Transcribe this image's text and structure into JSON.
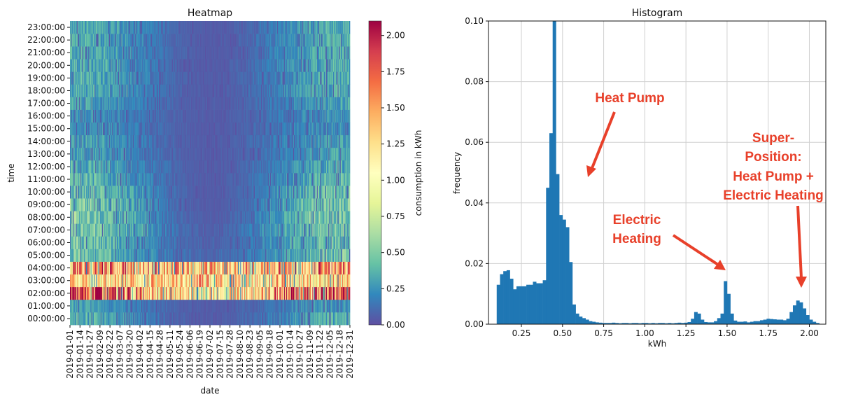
{
  "chart_data": [
    {
      "type": "heatmap",
      "title": "Heatmap",
      "xlabel": "date",
      "ylabel": "time",
      "x_ticks": [
        "2019-01-01",
        "2019-01-14",
        "2019-01-27",
        "2019-02-09",
        "2019-02-22",
        "2019-03-07",
        "2019-03-20",
        "2019-04-02",
        "2019-04-15",
        "2019-04-28",
        "2019-05-11",
        "2019-05-24",
        "2019-06-06",
        "2019-06-19",
        "2019-07-02",
        "2019-07-15",
        "2019-07-28",
        "2019-08-10",
        "2019-08-23",
        "2019-09-05",
        "2019-09-18",
        "2019-10-01",
        "2019-10-14",
        "2019-10-27",
        "2019-11-09",
        "2019-11-22",
        "2019-12-05",
        "2019-12-18",
        "2019-12-31"
      ],
      "y_ticks": [
        "00:00:00",
        "01:00:00",
        "02:00:00",
        "03:00:00",
        "04:00:00",
        "05:00:00",
        "06:00:00",
        "07:00:00",
        "08:00:00",
        "09:00:00",
        "10:00:00",
        "11:00:00",
        "12:00:00",
        "13:00:00",
        "14:00:00",
        "15:00:00",
        "16:00:00",
        "17:00:00",
        "18:00:00",
        "19:00:00",
        "20:00:00",
        "21:00:00",
        "22:00:00",
        "23:00:00"
      ],
      "colorbar": {
        "label": "consumption in kWh",
        "range": [
          0.0,
          2.1
        ],
        "ticks": [
          "0.00",
          "0.25",
          "0.50",
          "0.75",
          "1.00",
          "1.25",
          "1.50",
          "1.75",
          "2.00"
        ],
        "colormap": "Spectral_r"
      },
      "hourly_profile_by_season": {
        "hours": [
          0,
          1,
          2,
          3,
          4,
          5,
          6,
          7,
          8,
          9,
          10,
          11,
          12,
          13,
          14,
          15,
          16,
          17,
          18,
          19,
          20,
          21,
          22,
          23
        ],
        "winter": [
          0.35,
          0.3,
          1.9,
          1.2,
          1.5,
          0.45,
          0.45,
          0.5,
          0.5,
          0.5,
          0.45,
          0.4,
          0.35,
          0.3,
          0.3,
          0.25,
          0.25,
          0.3,
          0.35,
          0.35,
          0.35,
          0.35,
          0.35,
          0.35
        ],
        "summer": [
          0.05,
          0.05,
          1.1,
          1.3,
          1.3,
          0.1,
          0.08,
          0.08,
          0.06,
          0.05,
          0.05,
          0.05,
          0.05,
          0.05,
          0.05,
          0.05,
          0.05,
          0.05,
          0.05,
          0.05,
          0.05,
          0.05,
          0.05,
          0.05
        ]
      }
    },
    {
      "type": "bar",
      "title": "Histogram",
      "xlabel": "kWh",
      "ylabel": "frequency",
      "xlim": [
        0.05,
        2.1
      ],
      "ylim": [
        0,
        0.1
      ],
      "grid": true,
      "x_ticks": [
        "0.25",
        "0.50",
        "0.75",
        "1.00",
        "1.25",
        "1.50",
        "1.75",
        "2.00"
      ],
      "y_ticks": [
        "0.00",
        "0.02",
        "0.04",
        "0.06",
        "0.08",
        "0.10"
      ],
      "bin_width": 0.02,
      "bins": [
        [
          0.1,
          0.013
        ],
        [
          0.12,
          0.0165
        ],
        [
          0.14,
          0.0175
        ],
        [
          0.16,
          0.0178
        ],
        [
          0.18,
          0.015
        ],
        [
          0.2,
          0.0115
        ],
        [
          0.22,
          0.0125
        ],
        [
          0.24,
          0.0125
        ],
        [
          0.26,
          0.0125
        ],
        [
          0.28,
          0.013
        ],
        [
          0.3,
          0.013
        ],
        [
          0.32,
          0.014
        ],
        [
          0.34,
          0.0135
        ],
        [
          0.36,
          0.0135
        ],
        [
          0.38,
          0.0145
        ],
        [
          0.4,
          0.045
        ],
        [
          0.42,
          0.063
        ],
        [
          0.44,
          0.1
        ],
        [
          0.46,
          0.0495
        ],
        [
          0.48,
          0.036
        ],
        [
          0.5,
          0.0345
        ],
        [
          0.52,
          0.032
        ],
        [
          0.54,
          0.0205
        ],
        [
          0.56,
          0.0065
        ],
        [
          0.58,
          0.0035
        ],
        [
          0.6,
          0.0025
        ],
        [
          0.62,
          0.002
        ],
        [
          0.64,
          0.0015
        ],
        [
          0.66,
          0.001
        ],
        [
          0.68,
          0.0008
        ],
        [
          0.7,
          0.0006
        ],
        [
          0.72,
          0.0005
        ],
        [
          0.74,
          0.0004
        ],
        [
          0.76,
          0.0004
        ],
        [
          0.78,
          0.0004
        ],
        [
          0.8,
          0.0005
        ],
        [
          0.82,
          0.0004
        ],
        [
          0.84,
          0.0003
        ],
        [
          0.86,
          0.0004
        ],
        [
          0.88,
          0.0004
        ],
        [
          0.9,
          0.0003
        ],
        [
          0.92,
          0.0004
        ],
        [
          0.94,
          0.0004
        ],
        [
          0.96,
          0.0003
        ],
        [
          0.98,
          0.0004
        ],
        [
          1.0,
          0.0004
        ],
        [
          1.02,
          0.0003
        ],
        [
          1.04,
          0.0004
        ],
        [
          1.06,
          0.0003
        ],
        [
          1.08,
          0.0004
        ],
        [
          1.1,
          0.0004
        ],
        [
          1.12,
          0.0003
        ],
        [
          1.14,
          0.0004
        ],
        [
          1.16,
          0.0003
        ],
        [
          1.18,
          0.0004
        ],
        [
          1.2,
          0.0005
        ],
        [
          1.22,
          0.0004
        ],
        [
          1.24,
          0.0005
        ],
        [
          1.26,
          0.0007
        ],
        [
          1.28,
          0.0018
        ],
        [
          1.3,
          0.004
        ],
        [
          1.32,
          0.0035
        ],
        [
          1.34,
          0.0015
        ],
        [
          1.36,
          0.0007
        ],
        [
          1.38,
          0.0006
        ],
        [
          1.4,
          0.0006
        ],
        [
          1.42,
          0.001
        ],
        [
          1.44,
          0.002
        ],
        [
          1.46,
          0.0035
        ],
        [
          1.48,
          0.0142
        ],
        [
          1.5,
          0.01
        ],
        [
          1.52,
          0.0035
        ],
        [
          1.54,
          0.0012
        ],
        [
          1.56,
          0.0008
        ],
        [
          1.58,
          0.0008
        ],
        [
          1.6,
          0.0009
        ],
        [
          1.62,
          0.0006
        ],
        [
          1.64,
          0.0008
        ],
        [
          1.66,
          0.001
        ],
        [
          1.68,
          0.001
        ],
        [
          1.7,
          0.0013
        ],
        [
          1.72,
          0.0015
        ],
        [
          1.74,
          0.0018
        ],
        [
          1.76,
          0.0017
        ],
        [
          1.78,
          0.0016
        ],
        [
          1.8,
          0.0015
        ],
        [
          1.82,
          0.0015
        ],
        [
          1.84,
          0.0013
        ],
        [
          1.86,
          0.0018
        ],
        [
          1.88,
          0.004
        ],
        [
          1.9,
          0.0062
        ],
        [
          1.92,
          0.0078
        ],
        [
          1.94,
          0.0072
        ],
        [
          1.96,
          0.0052
        ],
        [
          1.98,
          0.003
        ],
        [
          2.0,
          0.0015
        ],
        [
          2.02,
          0.0008
        ],
        [
          2.04,
          0.0004
        ]
      ],
      "annotations": [
        {
          "lines": [
            "Heat Pump"
          ]
        },
        {
          "lines": [
            "Electric",
            "Heating"
          ]
        },
        {
          "lines": [
            "Super-",
            "Position:",
            "Heat Pump +",
            "Electric Heating"
          ]
        }
      ],
      "annotation_color": "#e8402a",
      "bar_color": "#1f77b4"
    }
  ]
}
